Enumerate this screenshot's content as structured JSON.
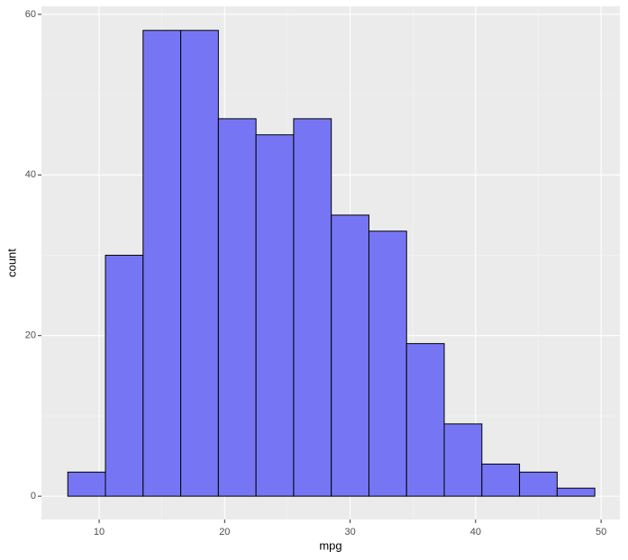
{
  "chart_data": {
    "type": "histogram",
    "x_label": "mpg",
    "y_label": "count",
    "bins": [
      7.5,
      10.5,
      13.5,
      16.5,
      19.5,
      22.5,
      25.5,
      28.5,
      31.5,
      34.5,
      37.5,
      40.5,
      43.5,
      46.5,
      49.5
    ],
    "values": [
      3,
      30,
      58,
      58,
      47,
      45,
      47,
      35,
      33,
      19,
      9,
      4,
      3,
      1
    ],
    "color": "#7676f5",
    "edge_color": "#000000",
    "xlim": [
      5.4,
      51.5
    ],
    "xticks": [
      10,
      20,
      30,
      40,
      50
    ],
    "ylim": [
      -2.9,
      61
    ],
    "yticks": [
      0,
      20,
      40,
      60
    ],
    "grid": true
  }
}
